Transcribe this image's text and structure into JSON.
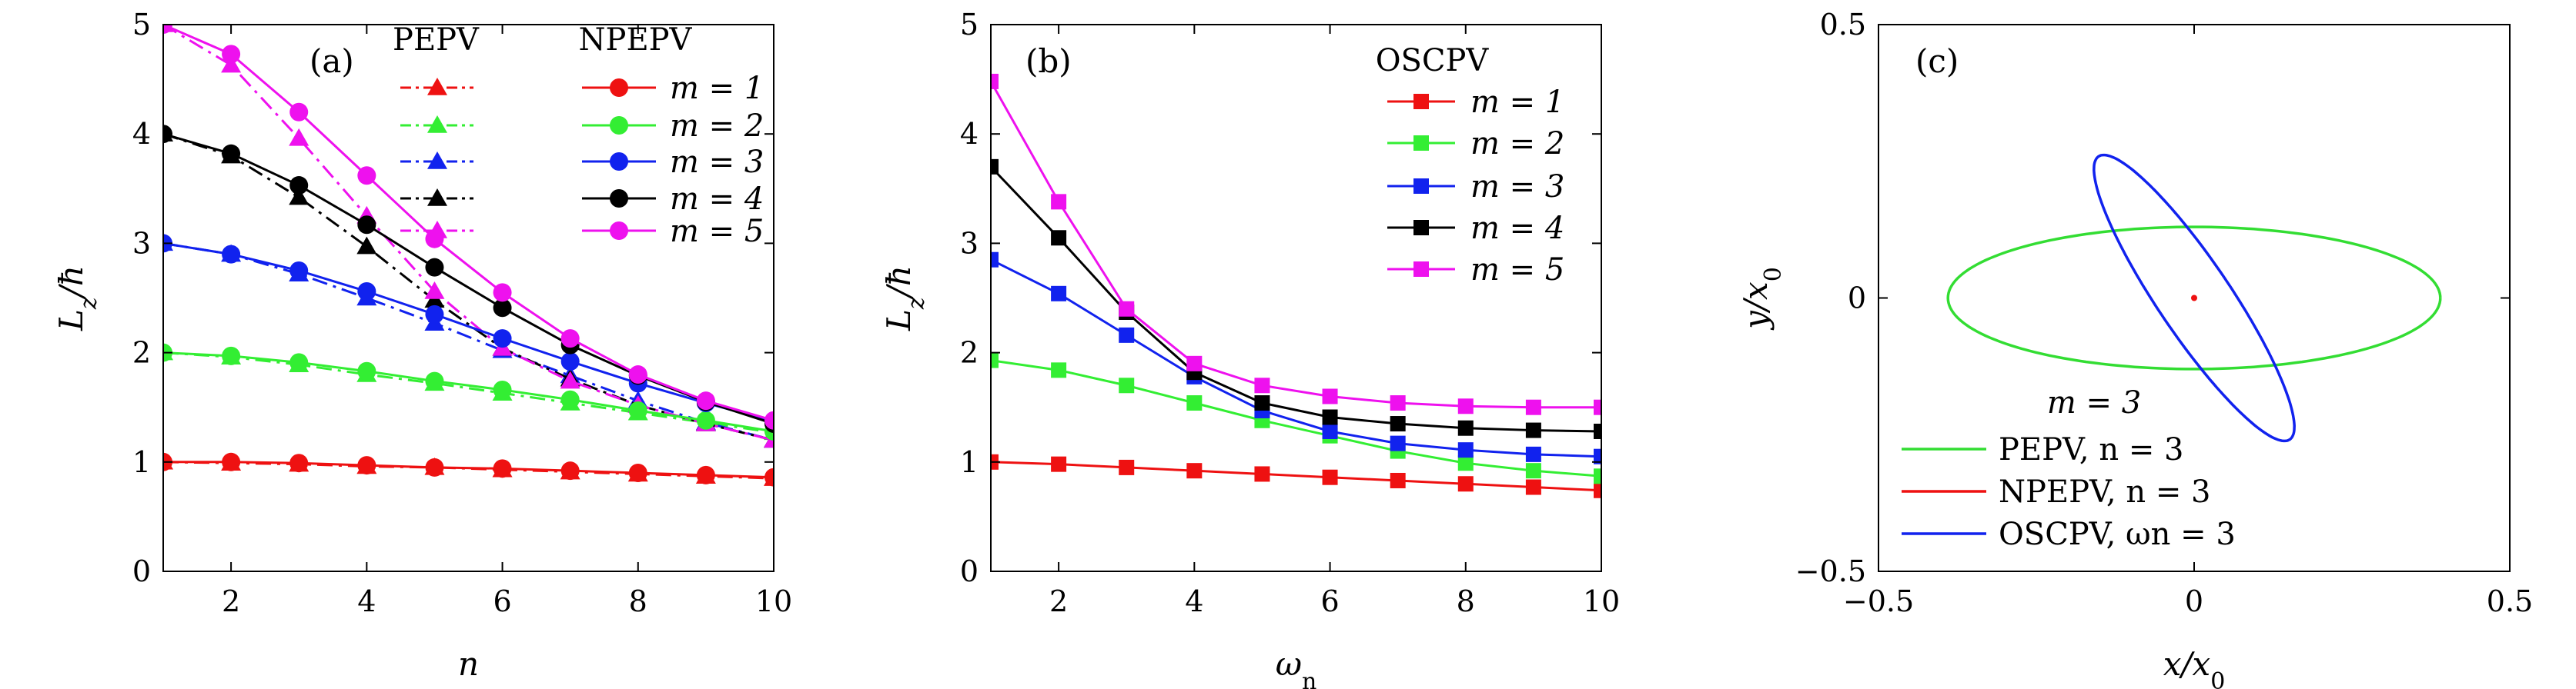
{
  "chart_data": [
    {
      "id": "a",
      "type": "line",
      "panel_label": "(a)",
      "xlabel": "n",
      "ylabel": "Lz/ħ",
      "xlim": [
        1,
        10
      ],
      "ylim": [
        0,
        5
      ],
      "xticks": [
        2,
        4,
        6,
        8,
        10
      ],
      "yticks": [
        0,
        1,
        2,
        3,
        4,
        5
      ],
      "x": [
        1,
        2,
        3,
        4,
        5,
        6,
        7,
        8,
        9,
        10
      ],
      "legend_headers": [
        "PEPV",
        "NPEPV"
      ],
      "legend_labels": [
        "m = 1",
        "m = 2",
        "m = 3",
        "m = 4",
        "m = 5"
      ],
      "colors": [
        "#ee1111",
        "#33ee33",
        "#1122ee",
        "#000000",
        "#ee11ee"
      ],
      "series": [
        {
          "group": "PEPV",
          "label_index": 0,
          "style": "dashdot",
          "marker": "triangle",
          "values": [
            1.0,
            0.99,
            0.98,
            0.96,
            0.95,
            0.93,
            0.91,
            0.89,
            0.87,
            0.85
          ]
        },
        {
          "group": "PEPV",
          "label_index": 1,
          "style": "dashdot",
          "marker": "triangle",
          "values": [
            2.0,
            1.96,
            1.89,
            1.8,
            1.72,
            1.63,
            1.54,
            1.45,
            1.36,
            1.27
          ]
        },
        {
          "group": "PEPV",
          "label_index": 2,
          "style": "dashdot",
          "marker": "triangle",
          "values": [
            3.0,
            2.9,
            2.72,
            2.5,
            2.27,
            2.02,
            1.79,
            1.56,
            1.36,
            1.2
          ]
        },
        {
          "group": "PEPV",
          "label_index": 3,
          "style": "dashdot",
          "marker": "triangle",
          "values": [
            4.0,
            3.8,
            3.42,
            2.97,
            2.48,
            2.04,
            1.76,
            1.52,
            1.35,
            1.2
          ]
        },
        {
          "group": "PEPV",
          "label_index": 4,
          "style": "dashdot",
          "marker": "triangle",
          "values": [
            5.0,
            4.63,
            3.96,
            3.25,
            2.56,
            2.04,
            1.74,
            1.52,
            1.35,
            1.2
          ]
        },
        {
          "group": "NPEPV",
          "label_index": 0,
          "style": "solid",
          "marker": "circle",
          "values": [
            1.0,
            1.0,
            0.99,
            0.97,
            0.95,
            0.94,
            0.92,
            0.9,
            0.88,
            0.86
          ]
        },
        {
          "group": "NPEPV",
          "label_index": 1,
          "style": "solid",
          "marker": "circle",
          "values": [
            2.0,
            1.97,
            1.91,
            1.83,
            1.74,
            1.66,
            1.57,
            1.47,
            1.38,
            1.28
          ]
        },
        {
          "group": "NPEPV",
          "label_index": 2,
          "style": "solid",
          "marker": "circle",
          "values": [
            3.0,
            2.9,
            2.75,
            2.56,
            2.35,
            2.13,
            1.92,
            1.72,
            1.54,
            1.37
          ]
        },
        {
          "group": "NPEPV",
          "label_index": 3,
          "style": "solid",
          "marker": "circle",
          "values": [
            4.0,
            3.82,
            3.53,
            3.17,
            2.78,
            2.41,
            2.07,
            1.79,
            1.55,
            1.35
          ]
        },
        {
          "group": "NPEPV",
          "label_index": 4,
          "style": "solid",
          "marker": "circle",
          "values": [
            5.0,
            4.73,
            4.2,
            3.62,
            3.04,
            2.55,
            2.13,
            1.8,
            1.56,
            1.38
          ]
        }
      ]
    },
    {
      "id": "b",
      "type": "line",
      "panel_label": "(b)",
      "xlabel": "ωn",
      "ylabel": "Lz/ħ",
      "xlim": [
        1,
        10
      ],
      "ylim": [
        0,
        5
      ],
      "xticks": [
        2,
        4,
        6,
        8,
        10
      ],
      "yticks": [
        0,
        1,
        2,
        3,
        4,
        5
      ],
      "x": [
        1,
        2,
        3,
        4,
        5,
        6,
        7,
        8,
        9,
        10
      ],
      "legend_headers": [
        "OSCPV"
      ],
      "legend_labels": [
        "m = 1",
        "m = 2",
        "m = 3",
        "m = 4",
        "m = 5"
      ],
      "colors": [
        "#ee1111",
        "#33ee33",
        "#1122ee",
        "#000000",
        "#ee11ee"
      ],
      "series": [
        {
          "group": "OSCPV",
          "label_index": 0,
          "style": "solid",
          "marker": "square",
          "values": [
            1.0,
            0.98,
            0.95,
            0.92,
            0.89,
            0.86,
            0.83,
            0.8,
            0.77,
            0.74
          ]
        },
        {
          "group": "OSCPV",
          "label_index": 1,
          "style": "solid",
          "marker": "square",
          "values": [
            1.93,
            1.84,
            1.7,
            1.54,
            1.38,
            1.24,
            1.1,
            0.99,
            0.92,
            0.87
          ]
        },
        {
          "group": "OSCPV",
          "label_index": 2,
          "style": "solid",
          "marker": "square",
          "values": [
            2.85,
            2.54,
            2.16,
            1.78,
            1.47,
            1.28,
            1.17,
            1.11,
            1.07,
            1.05
          ]
        },
        {
          "group": "OSCPV",
          "label_index": 3,
          "style": "solid",
          "marker": "square",
          "values": [
            3.7,
            3.05,
            2.37,
            1.82,
            1.54,
            1.41,
            1.35,
            1.31,
            1.29,
            1.28
          ]
        },
        {
          "group": "OSCPV",
          "label_index": 4,
          "style": "solid",
          "marker": "square",
          "values": [
            4.48,
            3.38,
            2.4,
            1.9,
            1.7,
            1.6,
            1.54,
            1.51,
            1.5,
            1.5
          ]
        }
      ]
    },
    {
      "id": "c",
      "type": "line",
      "panel_label": "(c)",
      "xlabel": "x/x0",
      "ylabel": "y/x0",
      "xlim": [
        -0.5,
        0.5
      ],
      "ylim": [
        -0.5,
        0.5
      ],
      "xticks": [
        -0.5,
        0,
        0.5
      ],
      "yticks": [
        -0.5,
        0,
        0.5
      ],
      "legend_title": "m = 3",
      "legend_labels": [
        "PEPV, n = 3",
        "NPEPV, n = 3",
        "OSCPV, ωn = 3"
      ],
      "colors": [
        "#33dd33",
        "#ee1111",
        "#1122ee"
      ],
      "ellipses": [
        {
          "label_index": 0,
          "center": [
            0.0,
            0.0
          ],
          "semi_axes": [
            0.39,
            0.13
          ],
          "angle_deg": 0
        },
        {
          "label_index": 1,
          "center": [
            0.0,
            0.0
          ],
          "semi_axes": [
            0.004,
            0.004
          ],
          "angle_deg": 0
        },
        {
          "label_index": 2,
          "center": [
            0.0,
            0.0
          ],
          "semi_axes": [
            0.3,
            0.06
          ],
          "angle_deg": -60
        }
      ]
    }
  ]
}
